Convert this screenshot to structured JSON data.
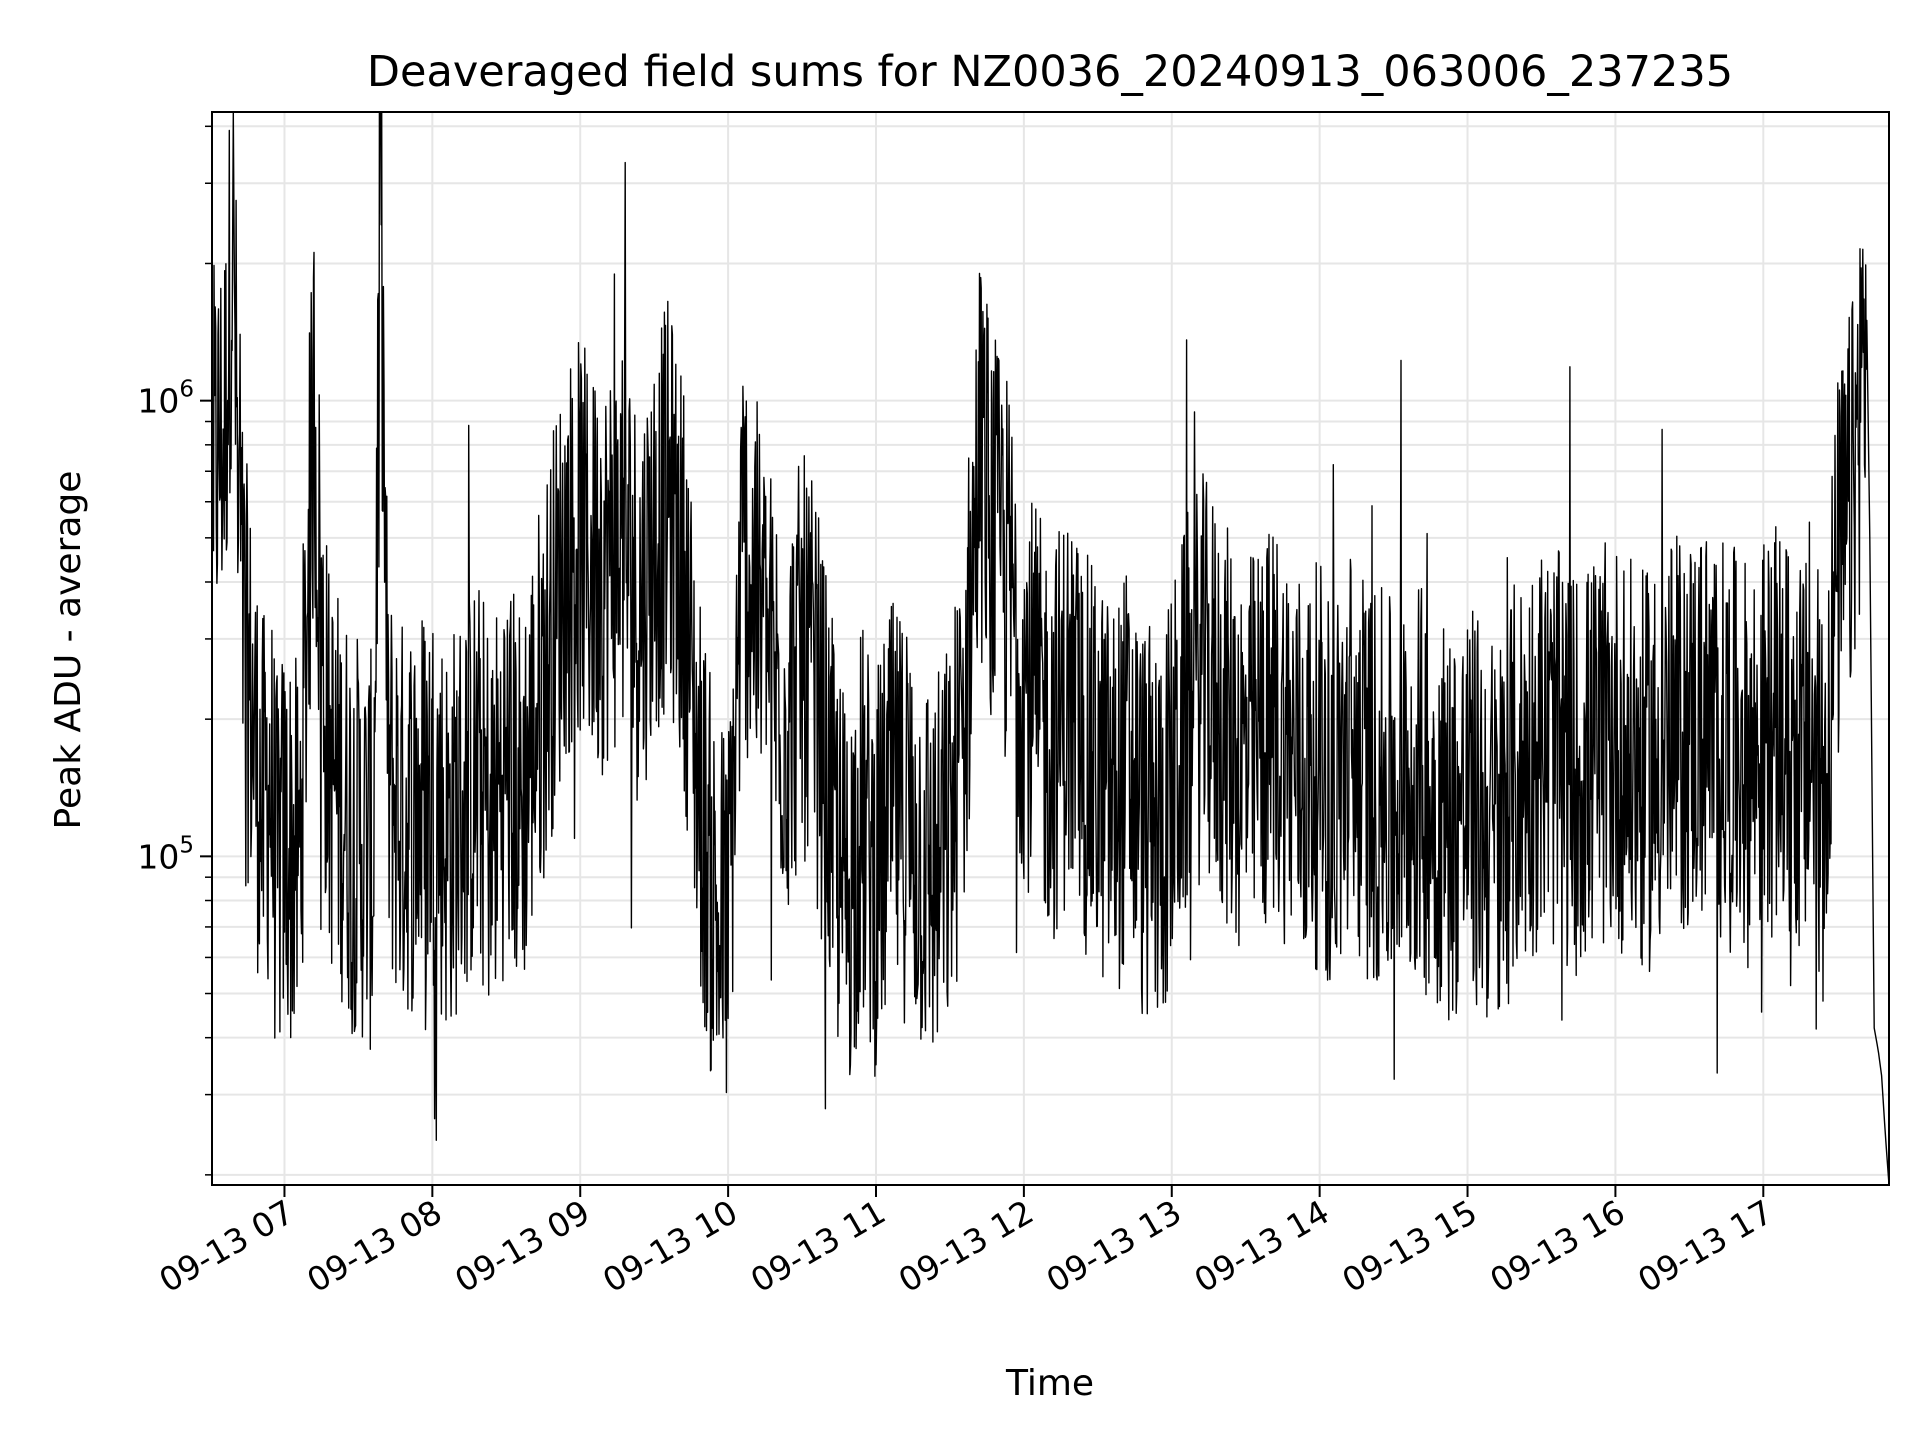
{
  "chart_data": {
    "type": "line",
    "title": "Deaveraged field sums for NZ0036_20240913_063006_237235",
    "xlabel": "Time",
    "ylabel": "Peak ADU - average",
    "yscale": "log",
    "xlim": [
      6.51,
      17.85
    ],
    "ylim": [
      19000,
      4300000
    ],
    "grid": true,
    "line_color": "#000000",
    "x_ticks": [
      {
        "value": 7,
        "label": "09-13 07"
      },
      {
        "value": 8,
        "label": "09-13 08"
      },
      {
        "value": 9,
        "label": "09-13 09"
      },
      {
        "value": 10,
        "label": "09-13 10"
      },
      {
        "value": 11,
        "label": "09-13 11"
      },
      {
        "value": 12,
        "label": "09-13 12"
      },
      {
        "value": 13,
        "label": "09-13 13"
      },
      {
        "value": 14,
        "label": "09-13 14"
      },
      {
        "value": 15,
        "label": "09-13 15"
      },
      {
        "value": 16,
        "label": "09-13 16"
      },
      {
        "value": 17,
        "label": "09-13 17"
      }
    ],
    "y_major_ticks": [
      {
        "value": 100000,
        "base": "10",
        "exp": "5"
      },
      {
        "value": 1000000,
        "base": "10",
        "exp": "6"
      }
    ],
    "x_unit": "hour of 2024-09-13",
    "series": [
      {
        "x": [
          6.52,
          6.6,
          6.65,
          6.7,
          6.75,
          6.8,
          6.85,
          6.9,
          6.95,
          7.0,
          7.1,
          7.2,
          7.25,
          7.3,
          7.4,
          7.5,
          7.6,
          7.65,
          7.7,
          7.8,
          7.9,
          8.0,
          8.1,
          8.2,
          8.3,
          8.4,
          8.5,
          8.6,
          8.7,
          8.8,
          8.9,
          9.0,
          9.1,
          9.2,
          9.3,
          9.4,
          9.5,
          9.6,
          9.7,
          9.8,
          9.9,
          10.0,
          10.1,
          10.2,
          10.3,
          10.4,
          10.5,
          10.6,
          10.7,
          10.8,
          10.9,
          11.0,
          11.1,
          11.2,
          11.3,
          11.4,
          11.5,
          11.6,
          11.7,
          11.8,
          11.9,
          12.0,
          12.1,
          12.2,
          12.3,
          12.4,
          12.5,
          12.6,
          12.7,
          12.8,
          12.9,
          13.0,
          13.1,
          13.2,
          13.3,
          13.4,
          13.5,
          13.6,
          13.7,
          13.8,
          13.9,
          14.0,
          14.1,
          14.2,
          14.3,
          14.4,
          14.5,
          14.6,
          14.7,
          14.8,
          14.9,
          15.0,
          15.1,
          15.2,
          15.3,
          15.4,
          15.5,
          15.6,
          15.7,
          15.8,
          15.9,
          16.0,
          16.1,
          16.2,
          16.3,
          16.4,
          16.5,
          16.6,
          16.7,
          16.8,
          16.9,
          17.0,
          17.1,
          17.2,
          17.3,
          17.4,
          17.5,
          17.6,
          17.7,
          17.72,
          17.75,
          17.78,
          17.8,
          17.82,
          17.85
        ],
        "y": [
          700000,
          900000,
          2500000,
          400000,
          250000,
          180000,
          120000,
          150000,
          90000,
          110000,
          95000,
          1000000,
          300000,
          160000,
          130000,
          110000,
          100000,
          3200000,
          150000,
          120000,
          130000,
          140000,
          110000,
          130000,
          150000,
          120000,
          160000,
          130000,
          200000,
          300000,
          450000,
          500000,
          400000,
          450000,
          500000,
          350000,
          500000,
          600000,
          400000,
          150000,
          80000,
          70000,
          500000,
          350000,
          250000,
          200000,
          280000,
          220000,
          120000,
          80000,
          120000,
          90000,
          130000,
          120000,
          100000,
          90000,
          110000,
          200000,
          800000,
          500000,
          400000,
          250000,
          200000,
          180000,
          220000,
          170000,
          150000,
          130000,
          160000,
          120000,
          110000,
          140000,
          200000,
          250000,
          220000,
          180000,
          160000,
          180000,
          200000,
          170000,
          150000,
          160000,
          130000,
          180000,
          150000,
          140000,
          130000,
          150000,
          140000,
          130000,
          120000,
          130000,
          120000,
          110000,
          140000,
          160000,
          180000,
          170000,
          150000,
          160000,
          170000,
          180000,
          160000,
          150000,
          170000,
          180000,
          190000,
          200000,
          180000,
          170000,
          160000,
          180000,
          190000,
          170000,
          160000,
          150000,
          400000,
          600000,
          1500000,
          500000,
          42000,
          37000,
          33000,
          26000,
          19000
        ]
      }
    ]
  }
}
